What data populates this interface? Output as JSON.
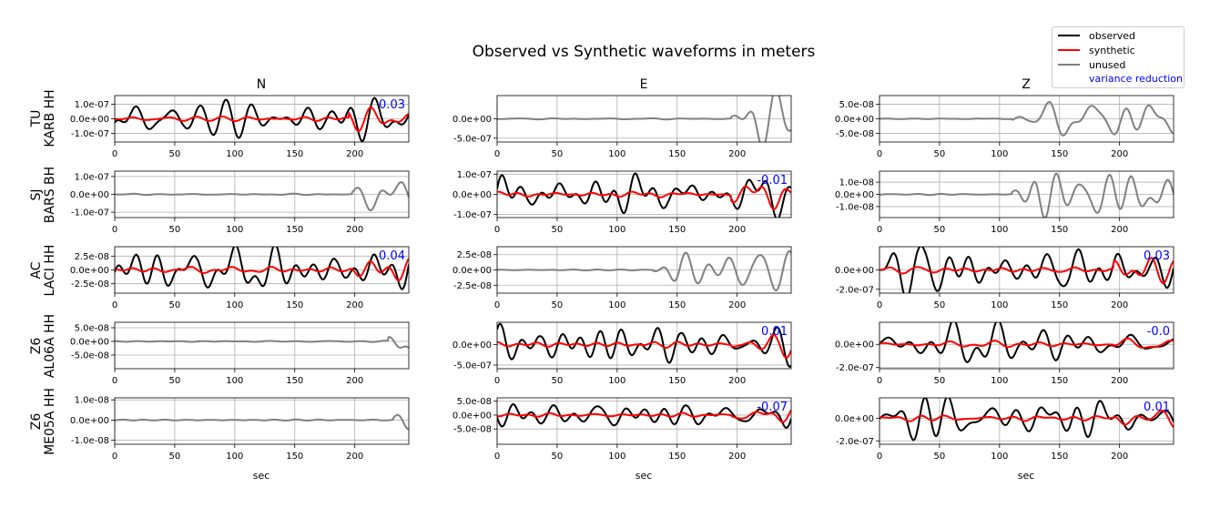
{
  "figure": {
    "title": "Observed vs Synthetic waveforms in meters",
    "columns": [
      "N",
      "E",
      "Z"
    ],
    "xlabel": "sec",
    "xticks": [
      "0",
      "50",
      "100",
      "150",
      "200"
    ],
    "stations": [
      {
        "network": "TU",
        "station": "KARB HH"
      },
      {
        "network": "SJ",
        "station": "BARS BH"
      },
      {
        "network": "AC",
        "station": "LACI HH"
      },
      {
        "network": "Z6",
        "station": "AL06A HH"
      },
      {
        "network": "Z6",
        "station": "ME05A HH"
      }
    ]
  },
  "legend": {
    "items": [
      {
        "label": "observed",
        "color": "#000000"
      },
      {
        "label": "synthetic",
        "color": "#ff0000"
      },
      {
        "label": "unused",
        "color": "#808080"
      },
      {
        "label": "variance reduction",
        "color": "#0000ff"
      }
    ]
  },
  "chart_data": {
    "type": "line",
    "title": "Observed vs Synthetic waveforms in meters",
    "xlabel": "sec",
    "xlim": [
      0,
      245
    ],
    "grid": true,
    "legend_position": "top-right",
    "panels": [
      {
        "row": 0,
        "col": 0,
        "component": "N",
        "used": true,
        "ylim": [
          -1.6e-07,
          1.6e-07
        ],
        "yticks": [
          "1.0e-07",
          "0.0e+00",
          "-1.0e-07"
        ],
        "ytick_values": [
          1e-07,
          0,
          -1e-07
        ],
        "amplitude": 1.35e-07,
        "variance_reduction": "0.03",
        "late_start": 0,
        "seed": 11
      },
      {
        "row": 0,
        "col": 1,
        "component": "E",
        "used": false,
        "ylim": [
          -6e-07,
          6e-07
        ],
        "yticks": [
          "0.0e+00",
          "-5.0e-07"
        ],
        "ytick_values": [
          0,
          -5e-07
        ],
        "amplitude": 5.8e-07,
        "variance_reduction": "",
        "late_start": 195,
        "seed": 12
      },
      {
        "row": 0,
        "col": 2,
        "component": "Z",
        "used": false,
        "ylim": [
          -8e-08,
          8e-08
        ],
        "yticks": [
          "5.0e-08",
          "0.0e+00",
          "-5.0e-08"
        ],
        "ytick_values": [
          5e-08,
          0,
          -5e-08
        ],
        "amplitude": 7e-08,
        "variance_reduction": "",
        "late_start": 110,
        "seed": 13
      },
      {
        "row": 1,
        "col": 0,
        "component": "N",
        "used": false,
        "ylim": [
          -1.3e-07,
          1.3e-07
        ],
        "yticks": [
          "1.0e-07",
          "0.0e+00",
          "-1.0e-07"
        ],
        "ytick_values": [
          1e-07,
          0,
          -1e-07
        ],
        "amplitude": 1.2e-07,
        "variance_reduction": "",
        "late_start": 198,
        "seed": 14
      },
      {
        "row": 1,
        "col": 1,
        "component": "E",
        "used": true,
        "ylim": [
          -1.15e-07,
          1.15e-07
        ],
        "yticks": [
          "1.0e-07",
          "0.0e+00",
          "-1.0e-07"
        ],
        "ytick_values": [
          1e-07,
          0,
          -1e-07
        ],
        "amplitude": 1.05e-07,
        "variance_reduction": "-0.01",
        "late_start": 0,
        "seed": 15
      },
      {
        "row": 1,
        "col": 2,
        "component": "Z",
        "used": false,
        "ylim": [
          -1.9e-08,
          1.9e-08
        ],
        "yticks": [
          "1.0e-08",
          "0.0e+00",
          "-1.0e-08"
        ],
        "ytick_values": [
          1e-08,
          0,
          -1e-08
        ],
        "amplitude": 1.8e-08,
        "variance_reduction": "",
        "late_start": 110,
        "seed": 16
      },
      {
        "row": 2,
        "col": 0,
        "component": "N",
        "used": true,
        "ylim": [
          -4.2e-08,
          4.2e-08
        ],
        "yticks": [
          "2.5e-08",
          "0.0e+00",
          "-2.5e-08"
        ],
        "ytick_values": [
          2.5e-08,
          0,
          -2.5e-08
        ],
        "amplitude": 4e-08,
        "variance_reduction": "0.04",
        "late_start": 0,
        "seed": 17
      },
      {
        "row": 2,
        "col": 1,
        "component": "E",
        "used": false,
        "ylim": [
          -3.8e-08,
          3.8e-08
        ],
        "yticks": [
          "2.5e-08",
          "0.0e+00",
          "-2.5e-08"
        ],
        "ytick_values": [
          2.5e-08,
          0,
          -2.5e-08
        ],
        "amplitude": 3.6e-08,
        "variance_reduction": "",
        "late_start": 130,
        "seed": 18
      },
      {
        "row": 2,
        "col": 2,
        "component": "Z",
        "used": true,
        "ylim": [
          -2.4e-07,
          2.4e-07
        ],
        "yticks": [
          "0.0e+00",
          "-2.0e-07"
        ],
        "ytick_values": [
          0,
          -2e-07
        ],
        "amplitude": 2.2e-07,
        "variance_reduction": "0.03",
        "late_start": 0,
        "seed": 19
      },
      {
        "row": 3,
        "col": 0,
        "component": "N",
        "used": false,
        "ylim": [
          -1e-07,
          7e-08
        ],
        "yticks": [
          "5.0e-08",
          "0.0e+00",
          "-5.0e-08"
        ],
        "ytick_values": [
          5e-08,
          0,
          -5e-08
        ],
        "amplitude": 8.5e-08,
        "variance_reduction": "",
        "late_start": 228,
        "seed": 20
      },
      {
        "row": 3,
        "col": 1,
        "component": "E",
        "used": true,
        "ylim": [
          -5.9e-07,
          5.4e-07
        ],
        "yticks": [
          "0.0e+00",
          "-5.0e-07"
        ],
        "ytick_values": [
          0,
          -5e-07
        ],
        "amplitude": 5.1e-07,
        "variance_reduction": "0.01",
        "late_start": 0,
        "seed": 21
      },
      {
        "row": 3,
        "col": 2,
        "component": "Z",
        "used": true,
        "ylim": [
          -2.1e-07,
          1.9e-07
        ],
        "yticks": [
          "0.0e+00",
          "-2.0e-07"
        ],
        "ytick_values": [
          0,
          -2e-07
        ],
        "amplitude": 1.85e-07,
        "variance_reduction": "-0.0",
        "late_start": 0,
        "seed": 22
      },
      {
        "row": 4,
        "col": 0,
        "component": "N",
        "used": false,
        "ylim": [
          -1.2e-08,
          1.1e-08
        ],
        "yticks": [
          "1.0e-08",
          "0.0e+00",
          "-1.0e-08"
        ],
        "ytick_values": [
          1e-08,
          0,
          -1e-08
        ],
        "amplitude": 1.1e-08,
        "variance_reduction": "",
        "late_start": 232,
        "seed": 23
      },
      {
        "row": 4,
        "col": 1,
        "component": "E",
        "used": true,
        "ylim": [
          -1.05e-07,
          6.2e-08
        ],
        "yticks": [
          "5.0e-08",
          "0.0e+00",
          "-5.0e-08"
        ],
        "ytick_values": [
          5e-08,
          0,
          -5e-08
        ],
        "amplitude": 6e-08,
        "variance_reduction": "-0.07",
        "late_start": 0,
        "seed": 24
      },
      {
        "row": 4,
        "col": 2,
        "component": "Z",
        "used": true,
        "ylim": [
          -2.3e-07,
          1.8e-07
        ],
        "yticks": [
          "0.0e+00",
          "-2.0e-07"
        ],
        "ytick_values": [
          0,
          -2e-07
        ],
        "amplitude": 1.75e-07,
        "variance_reduction": "0.01",
        "late_start": 0,
        "seed": 25
      }
    ]
  }
}
